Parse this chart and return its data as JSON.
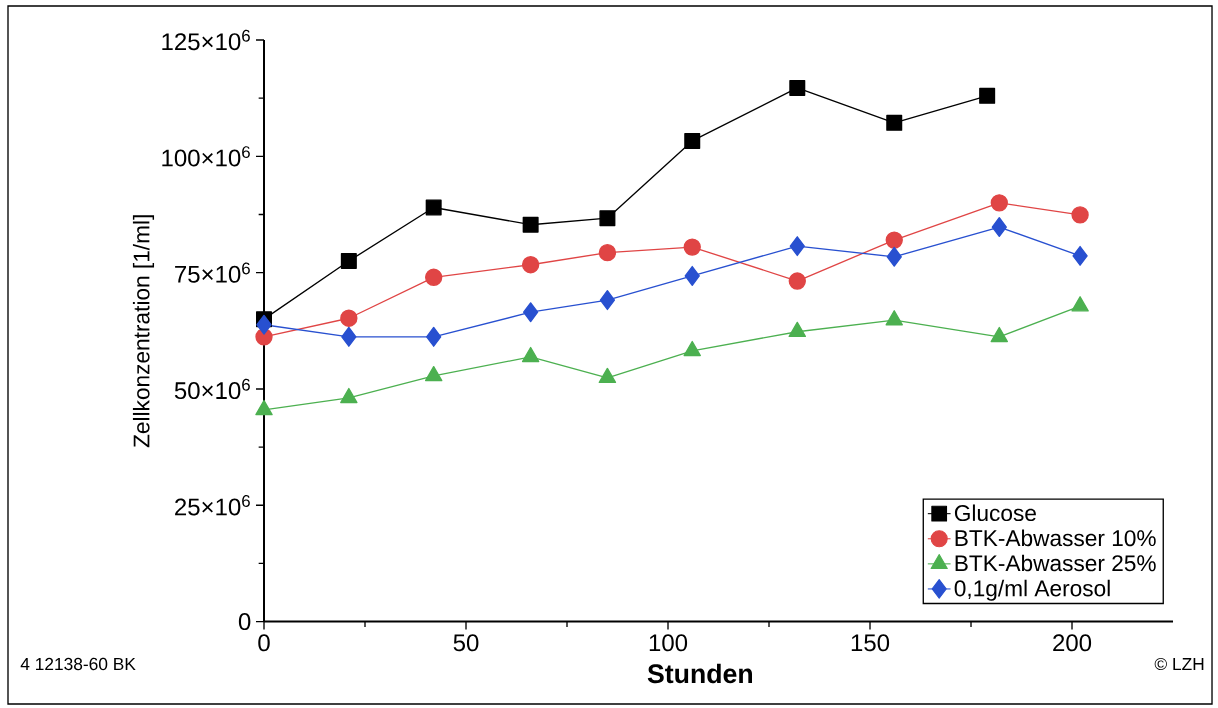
{
  "chart_data": {
    "type": "line",
    "xlabel": "Stunden",
    "ylabel": "Zellkonzentration [1/ml]",
    "xlim": [
      0,
      225
    ],
    "xticks": [
      0,
      50,
      100,
      150,
      200
    ],
    "ylim": [
      0,
      125000000
    ],
    "yticks": [
      {
        "value": 0,
        "label": "0"
      },
      {
        "value": 25000000,
        "label": "25×10$^{6}$"
      },
      {
        "value": 50000000,
        "label": "50×10$^{6}$"
      },
      {
        "value": 75000000,
        "label": "75×10$^{6}$"
      },
      {
        "value": 100000000,
        "label": "100×10$^{6}$"
      },
      {
        "value": 125000000,
        "label": "125×10$^{6}$"
      }
    ],
    "grid": false,
    "legend": "bottom right",
    "line_style": "solid",
    "annotations": [
      "4 12138-60 BK",
      "© LZH"
    ],
    "series": [
      {
        "name": "Glucose",
        "color": "#000000",
        "marker": "square",
        "x": [
          0,
          21,
          42,
          66,
          85,
          106,
          132,
          156,
          179
        ],
        "values": [
          65000000,
          77500000,
          89000000,
          85300000,
          86700000,
          103300000,
          114700000,
          107200000,
          113000000
        ]
      },
      {
        "name": "BTK-Abwasser 10%",
        "color": "#e04545",
        "marker": "circle",
        "x": [
          0,
          21,
          42,
          66,
          85,
          106,
          132,
          156,
          182,
          202
        ],
        "values": [
          61200000,
          65200000,
          74000000,
          76700000,
          79300000,
          80500000,
          73200000,
          82000000,
          90000000,
          87400000
        ]
      },
      {
        "name": "BTK-Abwasser 25%",
        "color": "#4cb050",
        "marker": "triangle",
        "x": [
          0,
          21,
          42,
          66,
          85,
          106,
          132,
          156,
          182,
          202
        ],
        "values": [
          45500000,
          48100000,
          52800000,
          56900000,
          52400000,
          58200000,
          62300000,
          64800000,
          61200000,
          67800000
        ]
      },
      {
        "name": "0,1g/ml Aerosol",
        "color": "#2850d0",
        "marker": "diamond",
        "x": [
          0,
          21,
          42,
          66,
          85,
          106,
          132,
          156,
          182,
          202
        ],
        "values": [
          63800000,
          61200000,
          61200000,
          66500000,
          69100000,
          74300000,
          80700000,
          78400000,
          84800000,
          78600000
        ]
      }
    ]
  }
}
